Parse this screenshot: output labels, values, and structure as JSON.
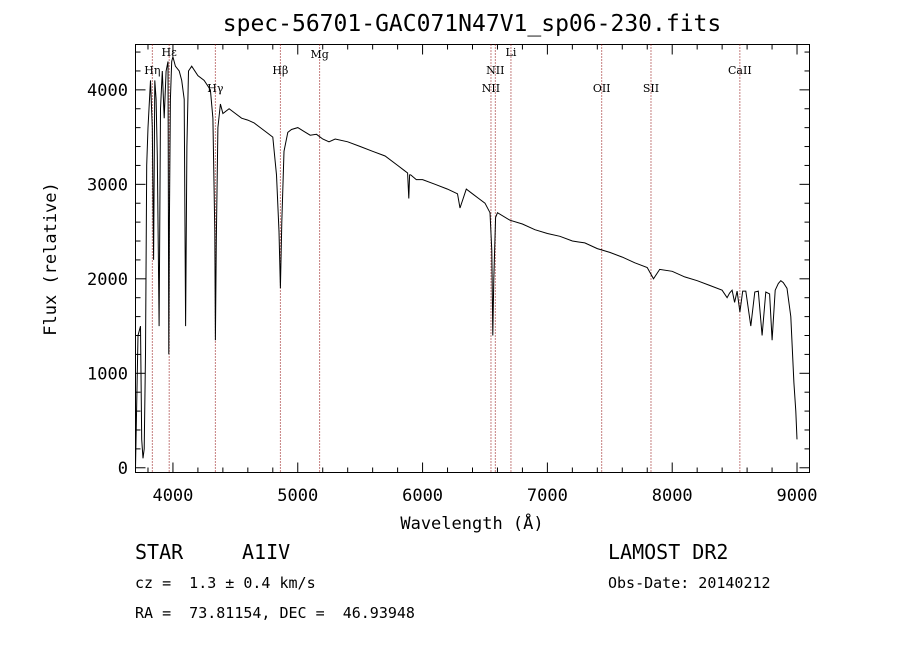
{
  "chart_data": {
    "type": "line",
    "title": "spec-56701-GAC071N47V1_sp06-230.fits",
    "xlabel": "Wavelength (Å)",
    "ylabel": "Flux (relative)",
    "xlim": [
      3700,
      9100
    ],
    "ylim": [
      -50,
      4480
    ],
    "x_ticks": [
      4000,
      5000,
      6000,
      7000,
      8000,
      9000
    ],
    "y_ticks": [
      0,
      1000,
      2000,
      3000,
      4000
    ],
    "grid": false,
    "series": [
      {
        "x": [
          3700,
          3720,
          3740,
          3750,
          3760,
          3770,
          3780,
          3790,
          3800,
          3820,
          3835,
          3845,
          3855,
          3865,
          3875,
          3885,
          3889,
          3893,
          3900,
          3915,
          3930,
          3945,
          3960,
          3967,
          3972,
          3980,
          3990,
          4000,
          4020,
          4050,
          4070,
          4090,
          4101,
          4112,
          4125,
          4150,
          4200,
          4250,
          4300,
          4320,
          4335,
          4340,
          4347,
          4360,
          4380,
          4400,
          4450,
          4500,
          4550,
          4600,
          4650,
          4700,
          4750,
          4800,
          4830,
          4850,
          4861,
          4872,
          4890,
          4920,
          4950,
          5000,
          5050,
          5100,
          5150,
          5200,
          5250,
          5300,
          5400,
          5500,
          5600,
          5700,
          5800,
          5850,
          5880,
          5890,
          5896,
          5905,
          5950,
          6000,
          6100,
          6200,
          6280,
          6300,
          6350,
          6400,
          6450,
          6500,
          6540,
          6555,
          6563,
          6571,
          6585,
          6600,
          6700,
          6800,
          6900,
          7000,
          7100,
          7200,
          7250,
          7300,
          7400,
          7500,
          7600,
          7700,
          7800,
          7850,
          7900,
          8000,
          8100,
          8200,
          8300,
          8400,
          8440,
          8460,
          8480,
          8500,
          8520,
          8542,
          8565,
          8590,
          8630,
          8662,
          8690,
          8720,
          8750,
          8780,
          8800,
          8825,
          8850,
          8870,
          8890,
          8920,
          8950,
          8975,
          8990,
          9000
        ],
        "y": [
          0,
          1400,
          1500,
          300,
          100,
          200,
          1200,
          3200,
          3600,
          4100,
          3600,
          2200,
          4100,
          3900,
          3300,
          2000,
          1500,
          2300,
          3800,
          4200,
          3700,
          4200,
          4300,
          1200,
          2600,
          3900,
          4300,
          4350,
          4250,
          4200,
          4100,
          3900,
          1500,
          3400,
          4200,
          4250,
          4150,
          4100,
          4000,
          3700,
          2500,
          1350,
          2400,
          3600,
          3850,
          3750,
          3800,
          3750,
          3700,
          3680,
          3650,
          3600,
          3550,
          3500,
          3100,
          2500,
          1900,
          2600,
          3350,
          3550,
          3580,
          3600,
          3560,
          3520,
          3530,
          3480,
          3450,
          3480,
          3450,
          3400,
          3350,
          3300,
          3200,
          3150,
          3120,
          2850,
          3100,
          3100,
          3050,
          3050,
          3000,
          2950,
          2900,
          2750,
          2950,
          2900,
          2850,
          2800,
          2700,
          2300,
          1400,
          2000,
          2650,
          2700,
          2620,
          2580,
          2520,
          2480,
          2450,
          2400,
          2390,
          2380,
          2320,
          2280,
          2230,
          2170,
          2120,
          2000,
          2100,
          2080,
          2020,
          1980,
          1930,
          1880,
          1800,
          1850,
          1880,
          1750,
          1870,
          1650,
          1870,
          1870,
          1500,
          1860,
          1870,
          1400,
          1860,
          1840,
          1350,
          1880,
          1950,
          1980,
          1960,
          1900,
          1600,
          900,
          600,
          300
        ]
      }
    ],
    "lines": [
      {
        "label": "Hη",
        "x": 3835
      },
      {
        "label": "Hε",
        "x": 3970
      },
      {
        "label": "Hγ",
        "x": 4340
      },
      {
        "label": "Hβ",
        "x": 4861
      },
      {
        "label": "Mg",
        "x": 5175
      },
      {
        "label": "NII",
        "x": 6548
      },
      {
        "label": "NII",
        "x": 6583
      },
      {
        "label": "Li",
        "x": 6708
      },
      {
        "label": "OII",
        "x": 7435
      },
      {
        "label": "SII",
        "x": 7830
      },
      {
        "label": "CaII",
        "x": 8542
      }
    ]
  },
  "info": {
    "object_class": "STAR",
    "subclass": "A1IV",
    "survey": "LAMOST DR2",
    "redshift": "cz =  1.3 ± 0.4 km/s",
    "obs_date": "Obs-Date: 20140212",
    "coords": "RA =  73.81154, DEC =  46.93948"
  },
  "colors": {
    "spectrum": "#000000",
    "marker_line": "#8b0000",
    "axes": "#000000",
    "background": "#ffffff"
  }
}
